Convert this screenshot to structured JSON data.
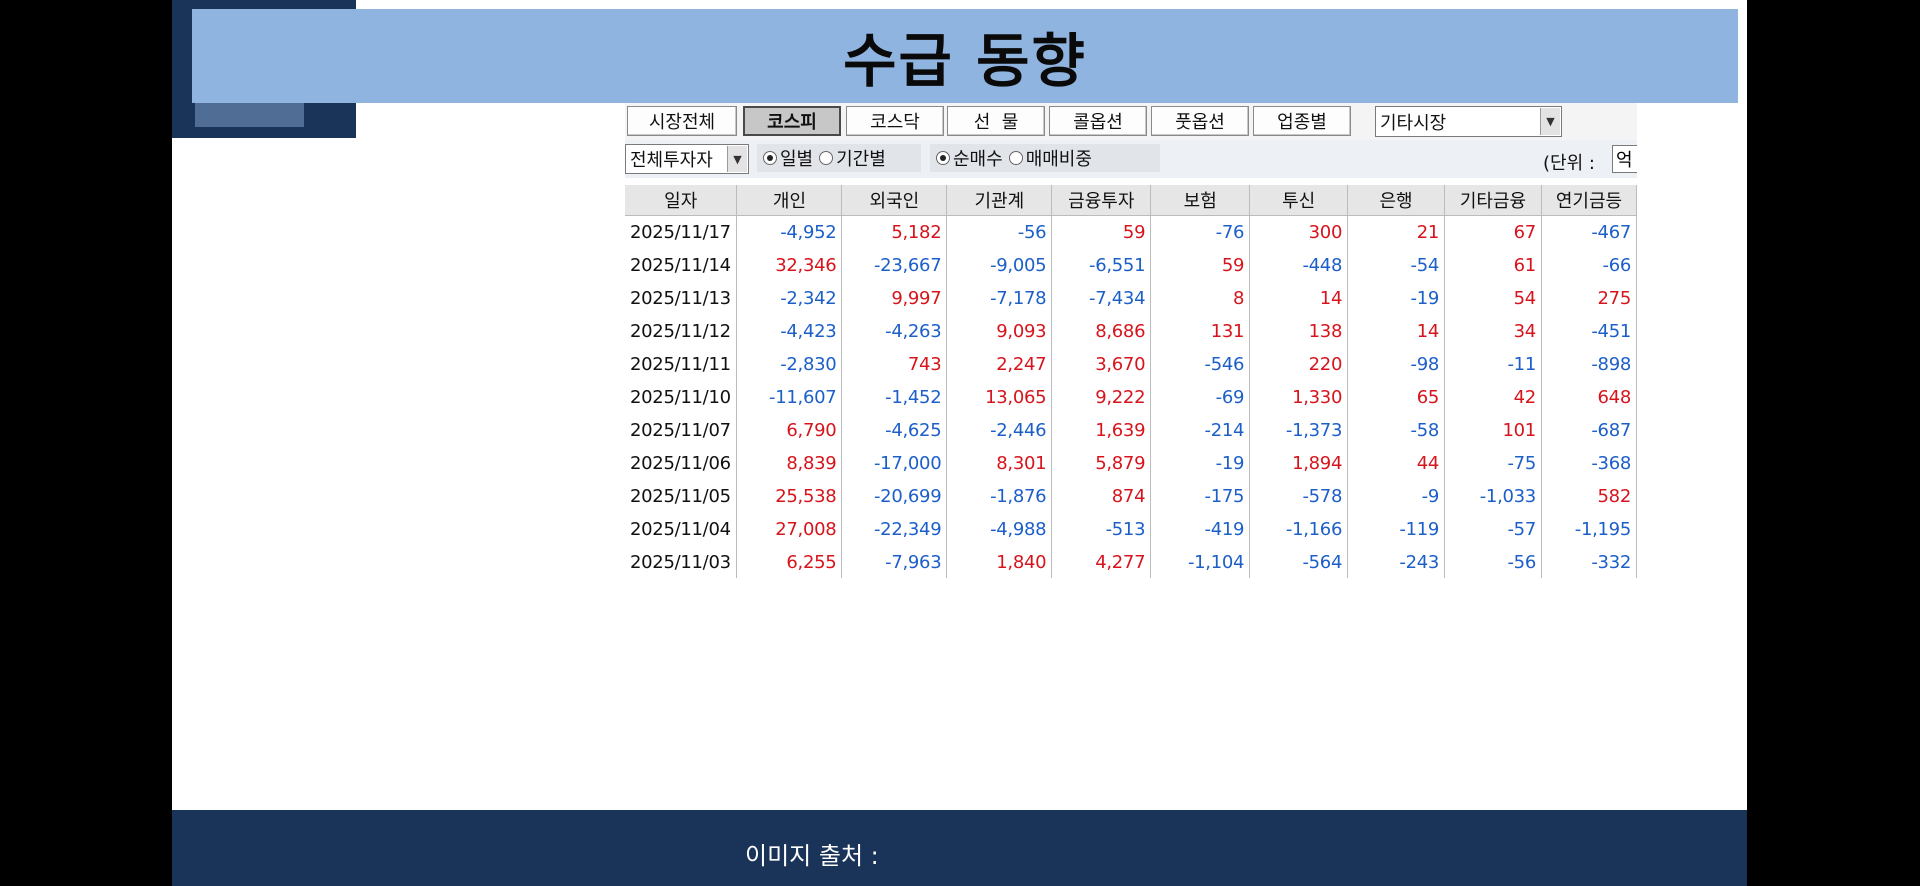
{
  "slide": {
    "title": "수급 동향",
    "footer_label": "이미지 출처 :"
  },
  "tabs": [
    {
      "label": "시장전체",
      "active": false
    },
    {
      "label": "코스피",
      "active": true
    },
    {
      "label": "코스닥",
      "active": false
    },
    {
      "label": "선  물",
      "active": false
    },
    {
      "label": "콜옵션",
      "active": false
    },
    {
      "label": "풋옵션",
      "active": false
    },
    {
      "label": "업종별",
      "active": false
    }
  ],
  "market_select": {
    "value": "기타시장"
  },
  "investor_select": {
    "value": "전체투자자"
  },
  "period_options": {
    "daily": {
      "label": "일별",
      "selected": true
    },
    "range": {
      "label": "기간별",
      "selected": false
    }
  },
  "mode_options": {
    "net": {
      "label": "순매수",
      "selected": true
    },
    "ratio": {
      "label": "매매비중",
      "selected": false
    }
  },
  "unit": {
    "label": "(단위 :",
    "value": "억"
  },
  "table": {
    "columns": [
      "일자",
      "개인",
      "외국인",
      "기관계",
      "금융투자",
      "보험",
      "투신",
      "은행",
      "기타금융",
      "연기금등"
    ],
    "rows": [
      [
        "2025/11/17",
        "-4,952",
        "5,182",
        "-56",
        "59",
        "-76",
        "300",
        "21",
        "67",
        "-467"
      ],
      [
        "2025/11/14",
        "32,346",
        "-23,667",
        "-9,005",
        "-6,551",
        "59",
        "-448",
        "-54",
        "61",
        "-66"
      ],
      [
        "2025/11/13",
        "-2,342",
        "9,997",
        "-7,178",
        "-7,434",
        "8",
        "14",
        "-19",
        "54",
        "275"
      ],
      [
        "2025/11/12",
        "-4,423",
        "-4,263",
        "9,093",
        "8,686",
        "131",
        "138",
        "14",
        "34",
        "-451"
      ],
      [
        "2025/11/11",
        "-2,830",
        "743",
        "2,247",
        "3,670",
        "-546",
        "220",
        "-98",
        "-11",
        "-898"
      ],
      [
        "2025/11/10",
        "-11,607",
        "-1,452",
        "13,065",
        "9,222",
        "-69",
        "1,330",
        "65",
        "42",
        "648"
      ],
      [
        "2025/11/07",
        "6,790",
        "-4,625",
        "-2,446",
        "1,639",
        "-214",
        "-1,373",
        "-58",
        "101",
        "-687"
      ],
      [
        "2025/11/06",
        "8,839",
        "-17,000",
        "8,301",
        "5,879",
        "-19",
        "1,894",
        "44",
        "-75",
        "-368"
      ],
      [
        "2025/11/05",
        "25,538",
        "-20,699",
        "-1,876",
        "874",
        "-175",
        "-578",
        "-9",
        "-1,033",
        "582"
      ],
      [
        "2025/11/04",
        "27,008",
        "-22,349",
        "-4,988",
        "-513",
        "-419",
        "-1,166",
        "-119",
        "-57",
        "-1,195"
      ],
      [
        "2025/11/03",
        "6,255",
        "-7,963",
        "1,840",
        "4,277",
        "-1,104",
        "-564",
        "-243",
        "-56",
        "-332"
      ]
    ]
  },
  "colors": {
    "positive": "#d7141c",
    "negative": "#1c5fc9",
    "title_band": "#8fb4e0",
    "navy": "#1a3358"
  }
}
